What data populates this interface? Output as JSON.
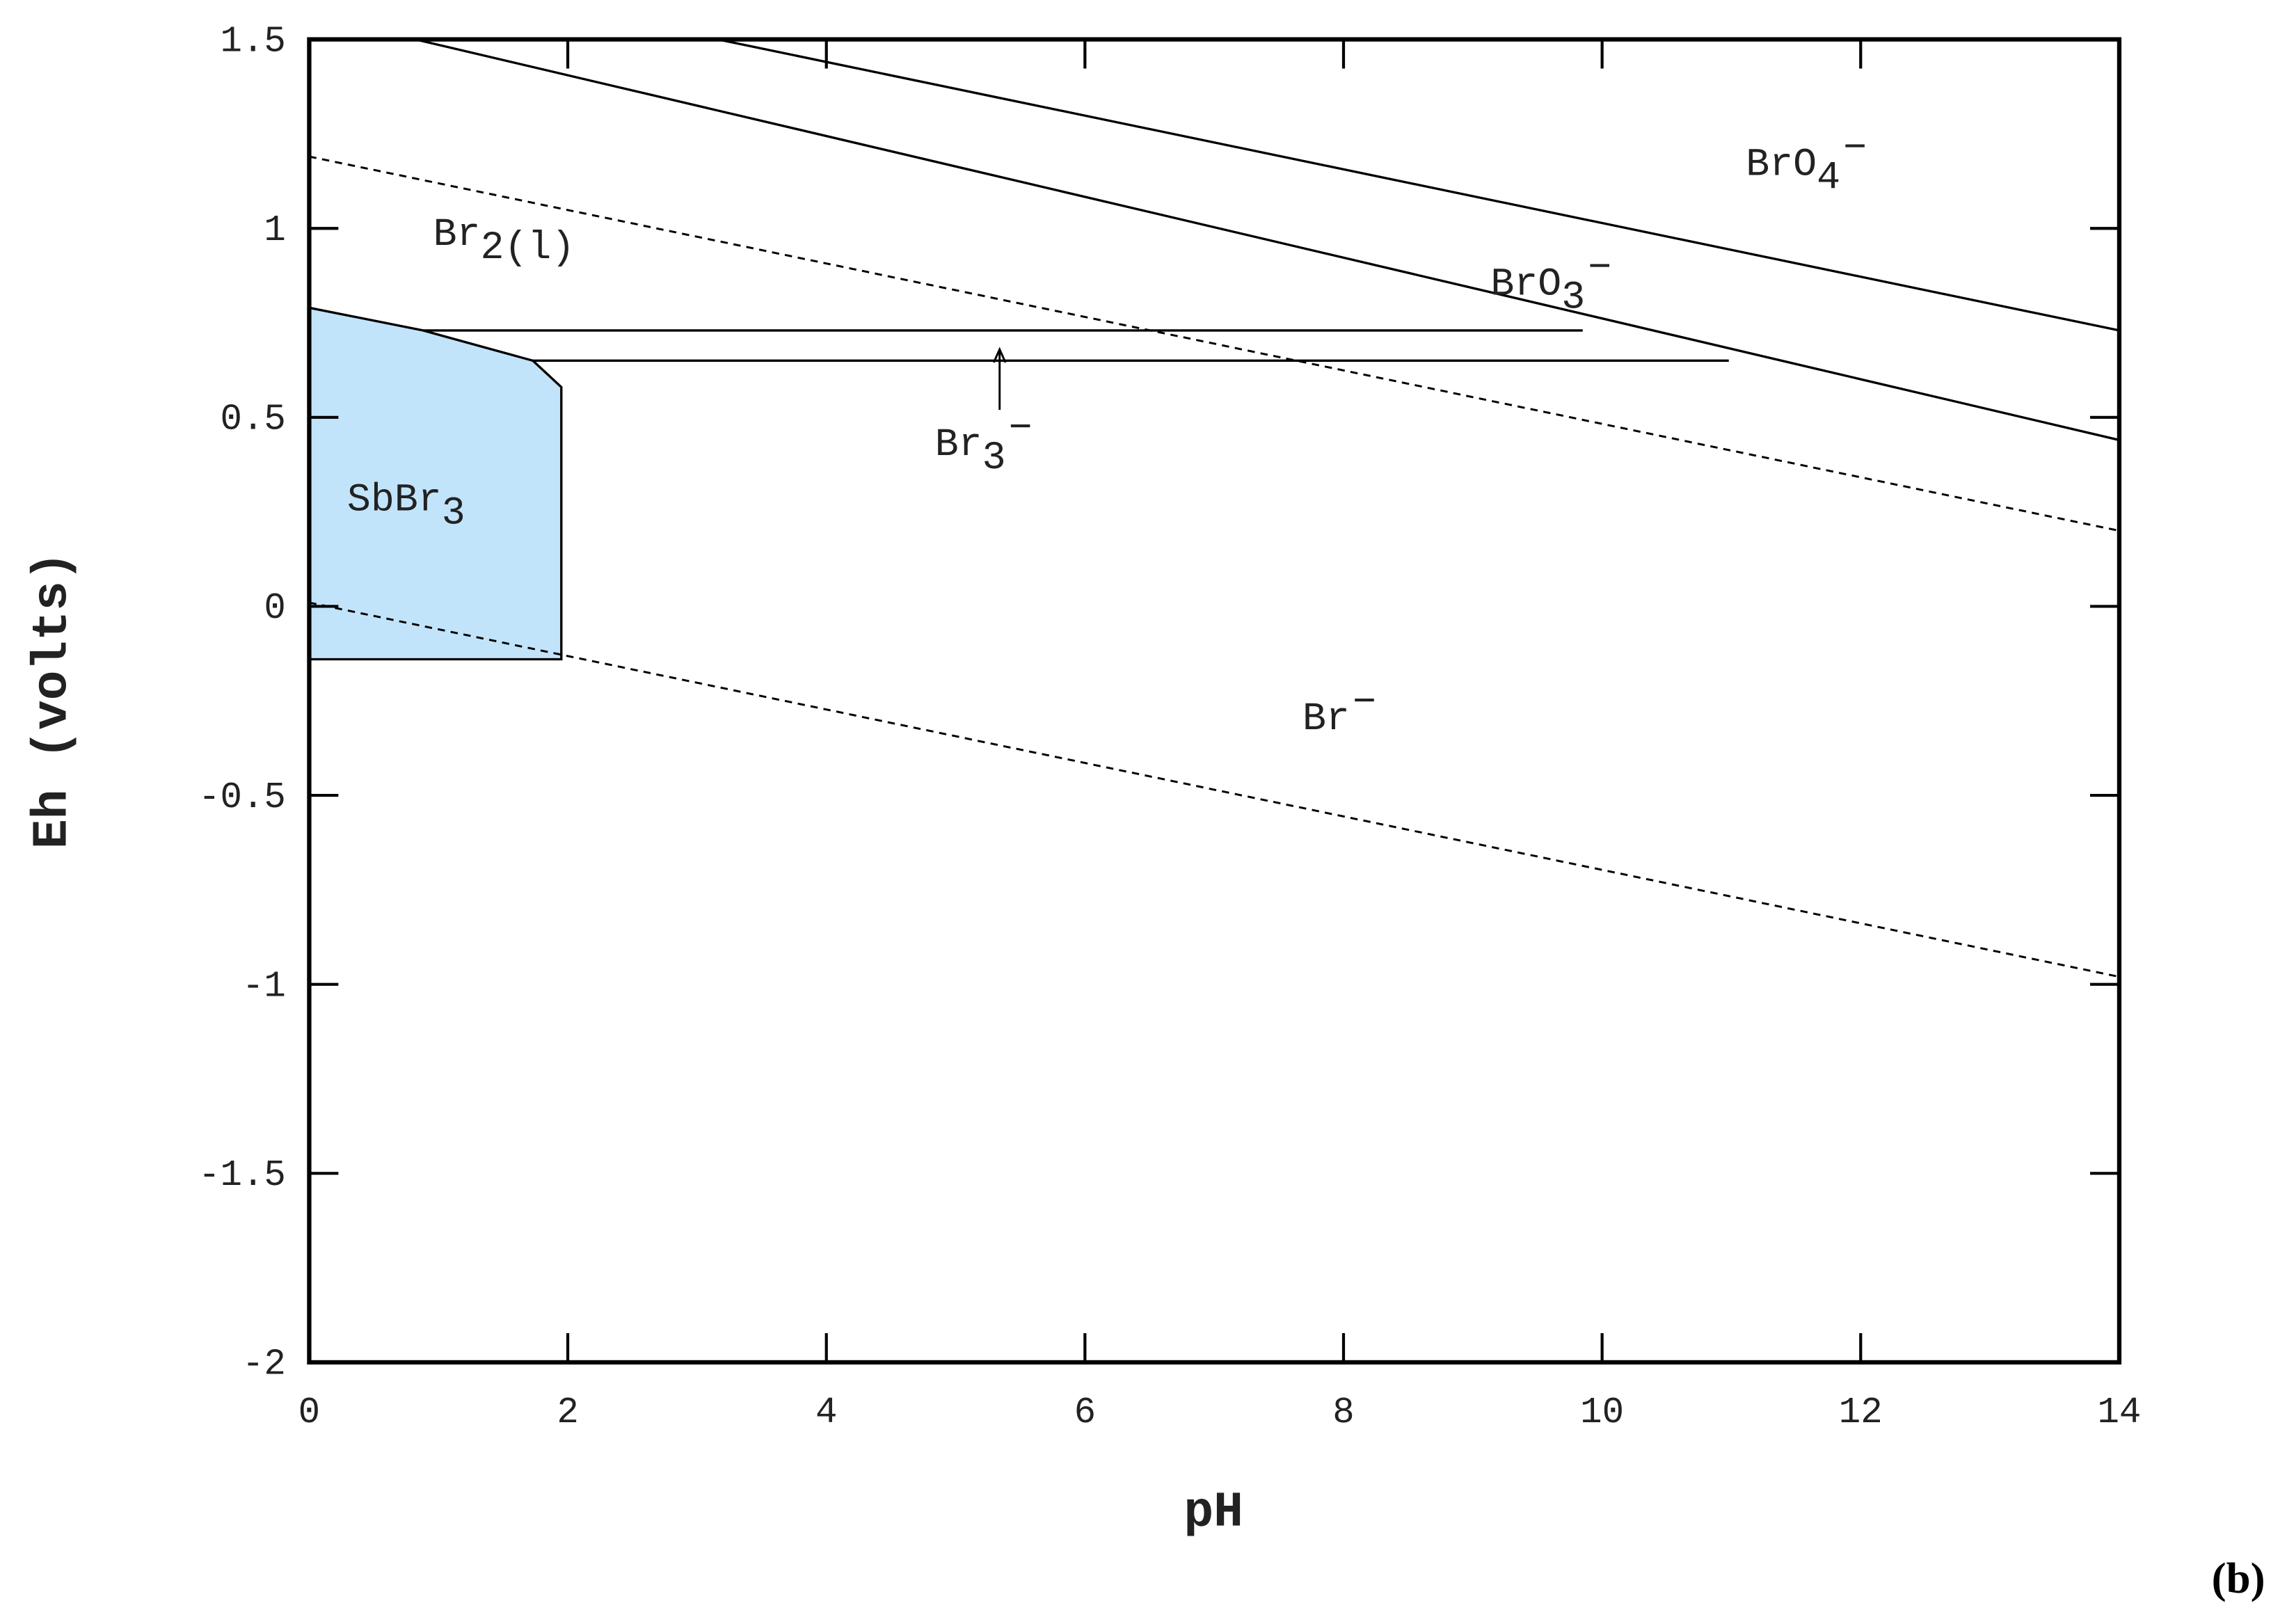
{
  "chart_data": {
    "type": "line",
    "x_label": "pH",
    "y_label": "Eh (volts)",
    "panel_label": "(b)",
    "xlim": [
      0,
      14
    ],
    "ylim": [
      -2,
      1.5
    ],
    "xticks": [
      0,
      2,
      4,
      6,
      8,
      10,
      12,
      14
    ],
    "yticks": [
      1.5,
      1,
      0.5,
      0,
      -0.5,
      -1,
      -1.5,
      -2
    ],
    "series": [
      {
        "x": [
          3.16,
          14
        ],
        "values": [
          1.5,
          0.73
        ],
        "color": "#000000",
        "style": "solid"
      },
      {
        "x": [
          0.82,
          14
        ],
        "values": [
          1.5,
          0.44
        ],
        "color": "#000000",
        "style": "solid"
      },
      {
        "x": [
          0.88,
          9.85
        ],
        "values": [
          0.73,
          0.73
        ],
        "color": "#000000",
        "style": "solid"
      },
      {
        "x": [
          1.73,
          10.98
        ],
        "values": [
          0.65,
          0.65
        ],
        "color": "#000000",
        "style": "solid"
      },
      {
        "x": [
          0,
          14
        ],
        "values": [
          1.19,
          0.2
        ],
        "color": "#000000",
        "style": "dashed"
      },
      {
        "x": [
          0,
          14
        ],
        "values": [
          0.01,
          -0.98
        ],
        "color": "#000000",
        "style": "dashed"
      }
    ],
    "regions": [
      {
        "x": [
          0,
          0.88,
          1.73,
          1.95,
          1.95,
          0
        ],
        "values": [
          0.79,
          0.73,
          0.65,
          0.58,
          -0.14,
          -0.14
        ],
        "color": "#c2e4fb"
      }
    ],
    "arrow": {
      "x": [
        5.34,
        5.34
      ],
      "values": [
        0.52,
        0.68
      ]
    },
    "annotations": [
      {
        "base": "BrO",
        "sub": "4",
        "sup": "−"
      },
      {
        "base": "Br",
        "sub": "2(l)"
      },
      {
        "base": "BrO",
        "sub": "3",
        "sup": "−"
      },
      {
        "base": "Br",
        "sub": "3",
        "sup": "−"
      },
      {
        "base": "SbBr",
        "sub": "3"
      },
      {
        "base": "Br",
        "sup": "−"
      }
    ]
  }
}
